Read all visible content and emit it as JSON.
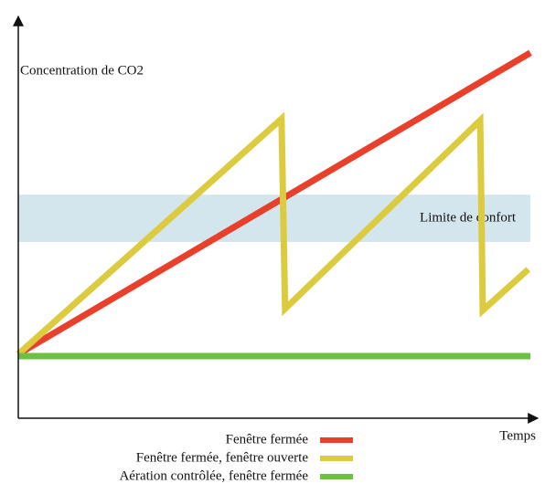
{
  "chart_data": {
    "type": "line",
    "ylabel": "Concentration de CO2",
    "xlabel": "Temps",
    "xlim": [
      0,
      100
    ],
    "ylim": [
      0,
      100
    ],
    "band": {
      "label": "Limite de confort",
      "y": [
        45.1,
        57.2
      ],
      "color": "#d3e6ee"
    },
    "series": [
      {
        "name": "Fenêtre fermée",
        "color": "#e8402a",
        "x": [
          0,
          100
        ],
        "values": [
          16.4,
          93.5
        ]
      },
      {
        "name": "Fenêtre fermée, fenêtre ouverte",
        "color": "#dccb3f",
        "x": [
          0,
          51.4,
          52.1,
          90.2,
          90.7,
          99.6
        ],
        "values": [
          16.4,
          76.6,
          28,
          76.2,
          27.6,
          38.1
        ]
      },
      {
        "name": "Aération contrôlée, fenêtre fermée",
        "color": "#6cc046",
        "x": [
          0,
          100
        ],
        "values": [
          15.9,
          15.9
        ]
      }
    ]
  }
}
